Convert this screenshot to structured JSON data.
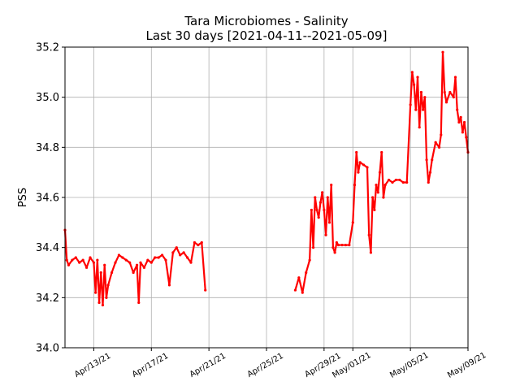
{
  "chart_data": {
    "type": "scatter",
    "title": "Tara Microbiomes - Salinity",
    "subtitle": "Last 30 days [2021-04-11--2021-05-09]",
    "xlabel": "",
    "ylabel": "PSS",
    "xlim": [
      "2021-04-11",
      "2021-05-09"
    ],
    "ylim": [
      34.0,
      35.2
    ],
    "yticks": [
      "34.0",
      "34.2",
      "34.4",
      "34.6",
      "34.8",
      "35.0",
      "35.2"
    ],
    "xticks": [
      {
        "date": "2021-04-13",
        "label": "Apr/13/21"
      },
      {
        "date": "2021-04-17",
        "label": "Apr/17/21"
      },
      {
        "date": "2021-04-21",
        "label": "Apr/21/21"
      },
      {
        "date": "2021-04-25",
        "label": "Apr/25/21"
      },
      {
        "date": "2021-04-29",
        "label": "Apr/29/21"
      },
      {
        "date": "2021-05-01",
        "label": "May/01/21"
      },
      {
        "date": "2021-05-05",
        "label": "May/05/21"
      },
      {
        "date": "2021-05-09",
        "label": "May/09/21"
      }
    ],
    "grid": true,
    "legend": "none",
    "marker_color": "#ff0000",
    "series": [
      {
        "points": [
          [
            "2021-04-11 00:00",
            34.47
          ],
          [
            "2021-04-11 03:00",
            34.35
          ],
          [
            "2021-04-11 06:00",
            34.33
          ],
          [
            "2021-04-11 12:00",
            34.35
          ],
          [
            "2021-04-11 18:00",
            34.36
          ],
          [
            "2021-04-12 00:00",
            34.34
          ],
          [
            "2021-04-12 06:00",
            34.35
          ],
          [
            "2021-04-12 12:00",
            34.32
          ],
          [
            "2021-04-12 18:00",
            34.36
          ],
          [
            "2021-04-13 00:00",
            34.34
          ],
          [
            "2021-04-13 03:00",
            34.22
          ],
          [
            "2021-04-13 06:00",
            34.35
          ],
          [
            "2021-04-13 09:00",
            34.18
          ],
          [
            "2021-04-13 12:00",
            34.3
          ],
          [
            "2021-04-13 15:00",
            34.17
          ],
          [
            "2021-04-13 18:00",
            34.33
          ],
          [
            "2021-04-13 21:00",
            34.2
          ],
          [
            "2021-04-14 00:00",
            34.25
          ],
          [
            "2021-04-14 06:00",
            34.3
          ],
          [
            "2021-04-14 12:00",
            34.34
          ],
          [
            "2021-04-14 18:00",
            34.37
          ],
          [
            "2021-04-15 00:00",
            34.36
          ],
          [
            "2021-04-15 06:00",
            34.35
          ],
          [
            "2021-04-15 12:00",
            34.34
          ],
          [
            "2021-04-15 18:00",
            34.3
          ],
          [
            "2021-04-16 00:00",
            34.33
          ],
          [
            "2021-04-16 03:00",
            34.18
          ],
          [
            "2021-04-16 06:00",
            34.34
          ],
          [
            "2021-04-16 12:00",
            34.32
          ],
          [
            "2021-04-16 18:00",
            34.35
          ],
          [
            "2021-04-17 00:00",
            34.34
          ],
          [
            "2021-04-17 06:00",
            34.36
          ],
          [
            "2021-04-17 12:00",
            34.36
          ],
          [
            "2021-04-17 18:00",
            34.37
          ],
          [
            "2021-04-18 00:00",
            34.35
          ],
          [
            "2021-04-18 06:00",
            34.25
          ],
          [
            "2021-04-18 12:00",
            34.38
          ],
          [
            "2021-04-18 18:00",
            34.4
          ],
          [
            "2021-04-19 00:00",
            34.37
          ],
          [
            "2021-04-19 06:00",
            34.38
          ],
          [
            "2021-04-19 12:00",
            34.36
          ],
          [
            "2021-04-19 18:00",
            34.34
          ],
          [
            "2021-04-20 00:00",
            34.42
          ],
          [
            "2021-04-20 06:00",
            34.41
          ],
          [
            "2021-04-20 12:00",
            34.42
          ],
          [
            "2021-04-20 18:00",
            34.23
          ],
          [
            "2021-04-27 00:00",
            34.23
          ],
          [
            "2021-04-27 06:00",
            34.28
          ],
          [
            "2021-04-27 12:00",
            34.22
          ],
          [
            "2021-04-27 18:00",
            34.3
          ],
          [
            "2021-04-28 00:00",
            34.35
          ],
          [
            "2021-04-28 03:00",
            34.55
          ],
          [
            "2021-04-28 06:00",
            34.4
          ],
          [
            "2021-04-28 09:00",
            34.6
          ],
          [
            "2021-04-28 12:00",
            34.55
          ],
          [
            "2021-04-28 15:00",
            34.52
          ],
          [
            "2021-04-28 18:00",
            34.58
          ],
          [
            "2021-04-28 21:00",
            34.62
          ],
          [
            "2021-04-29 00:00",
            34.55
          ],
          [
            "2021-04-29 03:00",
            34.45
          ],
          [
            "2021-04-29 06:00",
            34.6
          ],
          [
            "2021-04-29 09:00",
            34.5
          ],
          [
            "2021-04-29 12:00",
            34.65
          ],
          [
            "2021-04-29 15:00",
            34.4
          ],
          [
            "2021-04-29 18:00",
            34.38
          ],
          [
            "2021-04-29 21:00",
            34.42
          ],
          [
            "2021-04-30 00:00",
            34.41
          ],
          [
            "2021-04-30 06:00",
            34.41
          ],
          [
            "2021-04-30 12:00",
            34.41
          ],
          [
            "2021-04-30 18:00",
            34.41
          ],
          [
            "2021-05-01 00:00",
            34.5
          ],
          [
            "2021-05-01 03:00",
            34.65
          ],
          [
            "2021-05-01 06:00",
            34.78
          ],
          [
            "2021-05-01 09:00",
            34.7
          ],
          [
            "2021-05-01 12:00",
            34.74
          ],
          [
            "2021-05-01 18:00",
            34.73
          ],
          [
            "2021-05-02 00:00",
            34.72
          ],
          [
            "2021-05-02 03:00",
            34.45
          ],
          [
            "2021-05-02 06:00",
            34.38
          ],
          [
            "2021-05-02 09:00",
            34.6
          ],
          [
            "2021-05-02 12:00",
            34.55
          ],
          [
            "2021-05-02 15:00",
            34.65
          ],
          [
            "2021-05-02 18:00",
            34.62
          ],
          [
            "2021-05-02 21:00",
            34.7
          ],
          [
            "2021-05-03 00:00",
            34.78
          ],
          [
            "2021-05-03 03:00",
            34.6
          ],
          [
            "2021-05-03 06:00",
            34.65
          ],
          [
            "2021-05-03 12:00",
            34.67
          ],
          [
            "2021-05-03 18:00",
            34.66
          ],
          [
            "2021-05-04 00:00",
            34.67
          ],
          [
            "2021-05-04 06:00",
            34.67
          ],
          [
            "2021-05-04 12:00",
            34.66
          ],
          [
            "2021-05-04 18:00",
            34.66
          ],
          [
            "2021-05-05 00:00",
            34.97
          ],
          [
            "2021-05-05 03:00",
            35.1
          ],
          [
            "2021-05-05 06:00",
            35.05
          ],
          [
            "2021-05-05 09:00",
            34.95
          ],
          [
            "2021-05-05 12:00",
            35.08
          ],
          [
            "2021-05-05 15:00",
            34.88
          ],
          [
            "2021-05-05 18:00",
            35.02
          ],
          [
            "2021-05-05 21:00",
            34.95
          ],
          [
            "2021-05-06 00:00",
            35.0
          ],
          [
            "2021-05-06 03:00",
            34.75
          ],
          [
            "2021-05-06 06:00",
            34.66
          ],
          [
            "2021-05-06 09:00",
            34.7
          ],
          [
            "2021-05-06 12:00",
            34.75
          ],
          [
            "2021-05-06 18:00",
            34.82
          ],
          [
            "2021-05-07 00:00",
            34.8
          ],
          [
            "2021-05-07 03:00",
            34.85
          ],
          [
            "2021-05-07 06:00",
            35.18
          ],
          [
            "2021-05-07 09:00",
            35.02
          ],
          [
            "2021-05-07 12:00",
            34.98
          ],
          [
            "2021-05-07 18:00",
            35.02
          ],
          [
            "2021-05-08 00:00",
            35.0
          ],
          [
            "2021-05-08 03:00",
            35.08
          ],
          [
            "2021-05-08 06:00",
            34.95
          ],
          [
            "2021-05-08 09:00",
            34.9
          ],
          [
            "2021-05-08 12:00",
            34.92
          ],
          [
            "2021-05-08 15:00",
            34.86
          ],
          [
            "2021-05-08 18:00",
            34.9
          ],
          [
            "2021-05-08 21:00",
            34.84
          ],
          [
            "2021-05-09 00:00",
            34.78
          ]
        ]
      }
    ]
  }
}
